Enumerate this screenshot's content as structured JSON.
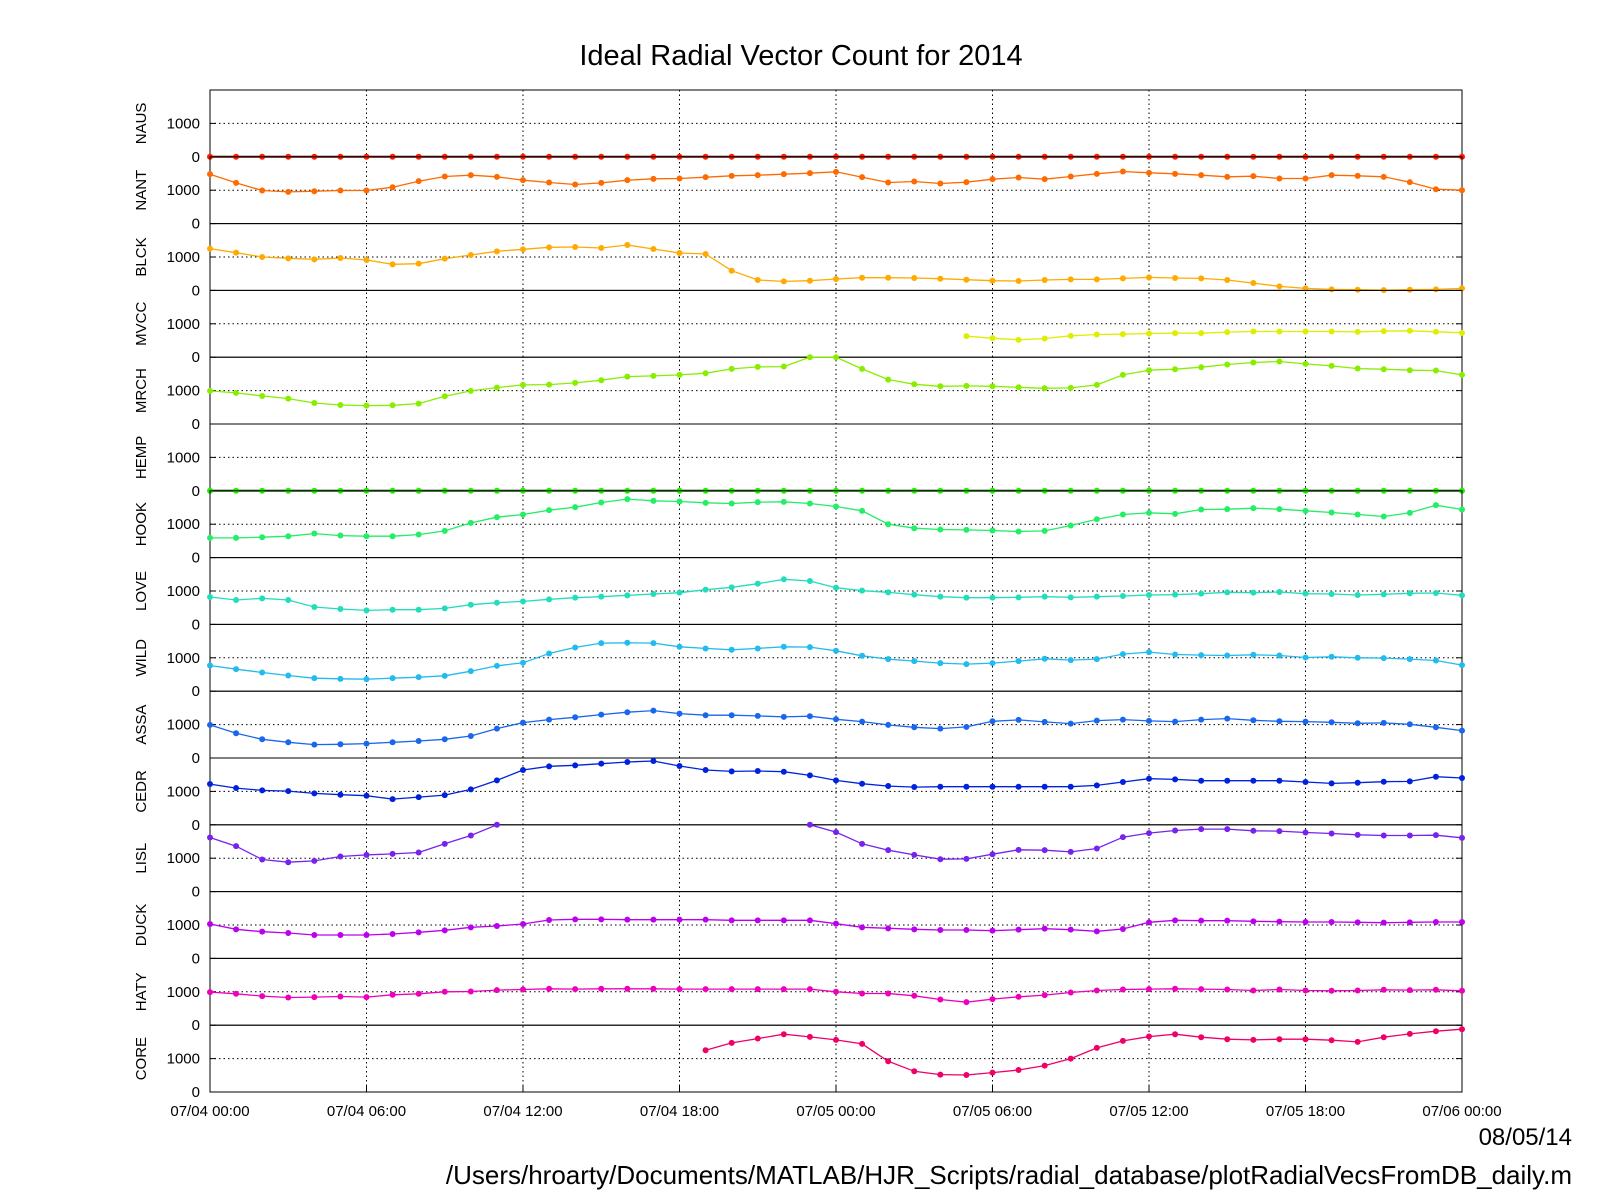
{
  "title": "Ideal Radial Vector Count for 2014",
  "footer": {
    "date": "08/05/14",
    "path": "/Users/hroarty/Documents/MATLAB/HJR_Scripts/radial_database/plotRadialVecsFromDB_daily.m"
  },
  "chart_data": {
    "type": "line",
    "title": "Ideal Radial Vector Count for 2014",
    "x_start": "07/04 00:00",
    "x_end": "07/06 00:00",
    "x_step_hours": 1,
    "x_ticks": [
      "07/04 00:00",
      "07/04 06:00",
      "07/04 12:00",
      "07/04 18:00",
      "07/05 00:00",
      "07/05 06:00",
      "07/05 12:00",
      "07/05 18:00",
      "07/06 00:00"
    ],
    "y_ticks": [
      0,
      1000
    ],
    "ylim": [
      0,
      2000
    ],
    "grid": true,
    "panels": [
      {
        "name": "NAUS",
        "color": "#ff1a00",
        "line_values": [
          0,
          0,
          0,
          0,
          0,
          0,
          0,
          0,
          0,
          0,
          0,
          0,
          0,
          0,
          0,
          0,
          0,
          0,
          0,
          0,
          0,
          0,
          0,
          0,
          0,
          0,
          0,
          0,
          0,
          0,
          0,
          0,
          0,
          0,
          0,
          0,
          0,
          0,
          0,
          0,
          0,
          0,
          0,
          0,
          0,
          0,
          0,
          0,
          0
        ],
        "values": [
          0,
          0,
          0,
          0,
          0,
          0,
          0,
          0,
          0,
          0,
          0,
          0,
          0,
          0,
          0,
          0,
          0,
          0,
          0,
          0,
          0,
          0,
          0,
          0,
          0,
          0,
          0,
          0,
          0,
          0,
          0,
          0,
          0,
          0,
          0,
          0,
          0,
          0,
          0,
          0,
          0,
          0,
          0,
          0,
          0,
          0,
          0,
          0,
          0
        ]
      },
      {
        "name": "NANT",
        "color": "#ff6a00",
        "values": [
          1480,
          1220,
          990,
          950,
          970,
          990,
          990,
          1090,
          1270,
          1410,
          1450,
          1400,
          1300,
          1230,
          1170,
          1220,
          1300,
          1340,
          1350,
          1390,
          1430,
          1450,
          1480,
          1510,
          1550,
          1390,
          1230,
          1260,
          1200,
          1240,
          1330,
          1380,
          1330,
          1410,
          1490,
          1560,
          1520,
          1490,
          1450,
          1400,
          1420,
          1350,
          1350,
          1450,
          1430,
          1400,
          1240,
          1030,
          1000
        ]
      },
      {
        "name": "BLCK",
        "color": "#ffaa00",
        "values": [
          1250,
          1130,
          1000,
          960,
          930,
          970,
          910,
          780,
          800,
          950,
          1060,
          1170,
          1230,
          1290,
          1300,
          1270,
          1360,
          1240,
          1120,
          1090,
          590,
          310,
          270,
          290,
          340,
          380,
          380,
          370,
          350,
          320,
          290,
          280,
          310,
          330,
          330,
          360,
          390,
          370,
          360,
          310,
          220,
          120,
          60,
          30,
          20,
          10,
          20,
          30,
          60
        ]
      },
      {
        "name": "MVCC",
        "color": "#ddee00",
        "values": [
          null,
          null,
          null,
          null,
          null,
          null,
          null,
          null,
          null,
          null,
          null,
          null,
          null,
          null,
          null,
          null,
          null,
          null,
          null,
          null,
          null,
          null,
          null,
          null,
          null,
          null,
          null,
          null,
          null,
          630,
          570,
          520,
          560,
          640,
          680,
          690,
          710,
          720,
          720,
          750,
          770,
          770,
          770,
          770,
          760,
          780,
          790,
          760,
          730
        ]
      },
      {
        "name": "MRCH",
        "color": "#88ee00",
        "values": [
          990,
          930,
          840,
          760,
          630,
          570,
          550,
          560,
          610,
          830,
          990,
          1090,
          1170,
          1180,
          1230,
          1310,
          1420,
          1440,
          1470,
          1520,
          1650,
          1710,
          1720,
          2000,
          2000,
          1650,
          1330,
          1190,
          1130,
          1140,
          1130,
          1100,
          1070,
          1080,
          1170,
          1470,
          1610,
          1640,
          1700,
          1780,
          1840,
          1870,
          1800,
          1740,
          1660,
          1640,
          1610,
          1600,
          1470
        ]
      },
      {
        "name": "HEMP",
        "color": "#22ee00",
        "line_values": [
          0,
          0,
          0,
          0,
          0,
          0,
          0,
          0,
          0,
          0,
          0,
          0,
          0,
          0,
          0,
          0,
          0,
          0,
          0,
          0,
          0,
          0,
          0,
          0,
          0,
          0,
          0,
          0,
          0,
          0,
          0,
          0,
          0,
          0,
          0,
          0,
          0,
          0,
          0,
          0,
          0,
          0,
          0,
          0,
          0,
          0,
          0,
          0,
          0
        ],
        "values": [
          0,
          0,
          0,
          0,
          0,
          0,
          0,
          0,
          0,
          0,
          0,
          0,
          0,
          0,
          0,
          0,
          0,
          0,
          0,
          0,
          0,
          0,
          0,
          0,
          0,
          0,
          0,
          0,
          0,
          0,
          0,
          0,
          0,
          0,
          0,
          0,
          0,
          0,
          0,
          0,
          0,
          0,
          0,
          0,
          0,
          0,
          0,
          0,
          0
        ]
      },
      {
        "name": "HOOK",
        "color": "#22ee66",
        "values": [
          590,
          590,
          610,
          640,
          720,
          660,
          640,
          640,
          690,
          800,
          1040,
          1210,
          1290,
          1420,
          1510,
          1650,
          1750,
          1700,
          1680,
          1640,
          1620,
          1660,
          1670,
          1620,
          1530,
          1400,
          1000,
          880,
          840,
          830,
          810,
          780,
          800,
          960,
          1150,
          1290,
          1340,
          1310,
          1440,
          1450,
          1480,
          1450,
          1400,
          1350,
          1290,
          1230,
          1340,
          1570,
          1440
        ]
      },
      {
        "name": "LOVE",
        "color": "#22ddbb",
        "values": [
          820,
          730,
          780,
          730,
          520,
          460,
          420,
          440,
          440,
          480,
          590,
          650,
          690,
          750,
          800,
          830,
          870,
          910,
          950,
          1040,
          1110,
          1220,
          1350,
          1300,
          1100,
          1010,
          960,
          890,
          830,
          800,
          800,
          810,
          830,
          810,
          830,
          850,
          880,
          890,
          920,
          960,
          950,
          970,
          920,
          910,
          880,
          900,
          930,
          940,
          870
        ]
      },
      {
        "name": "WILD",
        "color": "#22bbee",
        "values": [
          770,
          660,
          560,
          470,
          390,
          370,
          360,
          390,
          420,
          460,
          600,
          760,
          850,
          1130,
          1310,
          1440,
          1450,
          1440,
          1330,
          1280,
          1240,
          1280,
          1330,
          1320,
          1210,
          1060,
          960,
          900,
          840,
          810,
          840,
          900,
          970,
          930,
          960,
          1110,
          1170,
          1100,
          1080,
          1070,
          1090,
          1070,
          1010,
          1030,
          1000,
          990,
          960,
          920,
          780
        ]
      },
      {
        "name": "ASSA",
        "color": "#1a66ee",
        "values": [
          990,
          740,
          560,
          470,
          400,
          410,
          430,
          470,
          510,
          560,
          660,
          880,
          1060,
          1150,
          1220,
          1300,
          1370,
          1420,
          1330,
          1280,
          1280,
          1260,
          1230,
          1250,
          1160,
          1090,
          990,
          920,
          880,
          930,
          1100,
          1140,
          1080,
          1030,
          1120,
          1150,
          1110,
          1090,
          1150,
          1180,
          1130,
          1100,
          1090,
          1070,
          1040,
          1050,
          1010,
          920,
          820
        ]
      },
      {
        "name": "CEDR",
        "color": "#0022dd",
        "values": [
          1220,
          1100,
          1030,
          1010,
          940,
          900,
          870,
          770,
          830,
          890,
          1060,
          1330,
          1640,
          1750,
          1780,
          1830,
          1880,
          1910,
          1760,
          1640,
          1600,
          1610,
          1590,
          1480,
          1330,
          1230,
          1160,
          1130,
          1140,
          1140,
          1140,
          1140,
          1140,
          1140,
          1180,
          1280,
          1380,
          1360,
          1320,
          1320,
          1320,
          1320,
          1280,
          1240,
          1260,
          1290,
          1300,
          1440,
          1400
        ]
      },
      {
        "name": "LISL",
        "color": "#7722ee",
        "values": [
          1620,
          1360,
          960,
          880,
          920,
          1050,
          1100,
          1130,
          1170,
          1430,
          1680,
          2000,
          null,
          null,
          null,
          null,
          null,
          null,
          null,
          null,
          null,
          null,
          null,
          2000,
          1780,
          1430,
          1240,
          1100,
          970,
          980,
          1120,
          1250,
          1240,
          1190,
          1290,
          1630,
          1750,
          1830,
          1870,
          1870,
          1820,
          1810,
          1770,
          1740,
          1700,
          1680,
          1680,
          1690,
          1610
        ]
      },
      {
        "name": "DUCK",
        "color": "#bb00ee",
        "values": [
          1030,
          870,
          800,
          760,
          700,
          700,
          700,
          730,
          780,
          840,
          930,
          970,
          1030,
          1150,
          1170,
          1170,
          1160,
          1160,
          1160,
          1160,
          1140,
          1140,
          1140,
          1140,
          1040,
          930,
          900,
          870,
          850,
          850,
          830,
          860,
          890,
          860,
          810,
          880,
          1080,
          1140,
          1130,
          1130,
          1110,
          1100,
          1090,
          1090,
          1080,
          1070,
          1080,
          1090,
          1090
        ]
      },
      {
        "name": "HATY",
        "color": "#ee00bb",
        "values": [
          990,
          940,
          870,
          830,
          840,
          860,
          840,
          910,
          940,
          1000,
          1010,
          1050,
          1070,
          1090,
          1080,
          1090,
          1090,
          1090,
          1080,
          1080,
          1080,
          1080,
          1080,
          1080,
          1000,
          950,
          950,
          880,
          770,
          690,
          780,
          850,
          900,
          980,
          1040,
          1070,
          1080,
          1090,
          1080,
          1070,
          1040,
          1070,
          1040,
          1030,
          1040,
          1060,
          1050,
          1060,
          1030
        ]
      },
      {
        "name": "CORE",
        "color": "#ee0066",
        "values": [
          null,
          null,
          null,
          null,
          null,
          null,
          null,
          null,
          null,
          null,
          null,
          null,
          null,
          null,
          null,
          null,
          null,
          null,
          null,
          1250,
          1470,
          1600,
          1730,
          1650,
          1560,
          1440,
          920,
          620,
          520,
          510,
          580,
          660,
          790,
          1000,
          1320,
          1530,
          1660,
          1730,
          1640,
          1580,
          1560,
          1580,
          1580,
          1550,
          1500,
          1640,
          1740,
          1820,
          1880
        ]
      }
    ]
  }
}
